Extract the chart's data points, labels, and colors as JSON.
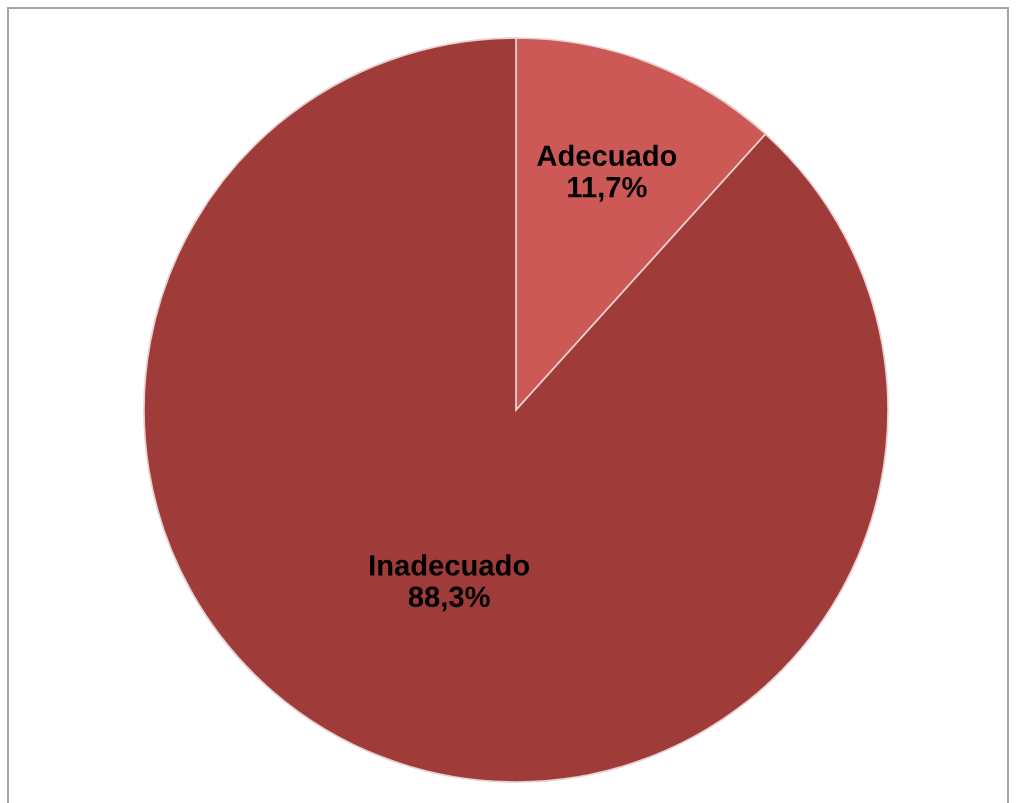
{
  "chart_data": {
    "type": "pie",
    "categories": [
      "Adecuado",
      "Inadecuado"
    ],
    "values": [
      11.7,
      88.3
    ],
    "colors": [
      "#cd5957",
      "#9f3b39"
    ],
    "value_labels": [
      "11,7%",
      "88,3%"
    ]
  }
}
